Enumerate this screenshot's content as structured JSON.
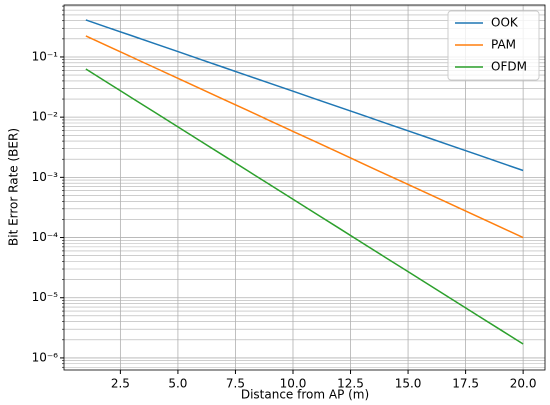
{
  "chart_data": {
    "type": "line",
    "xlabel": "Distance from AP (m)",
    "ylabel": "Bit Error Rate (BER)",
    "x": [
      1,
      2,
      3,
      4,
      5,
      6,
      7,
      8,
      9,
      10,
      11,
      12,
      13,
      14,
      15,
      16,
      17,
      18,
      19,
      20
    ],
    "series": [
      {
        "name": "OOK",
        "color": "#1f77b4",
        "values": [
          0.412,
          0.304,
          0.225,
          0.166,
          0.123,
          0.0906,
          0.0668,
          0.0494,
          0.0365,
          0.027,
          0.0199,
          0.0147,
          0.0109,
          0.00802,
          0.00593,
          0.00438,
          0.00323,
          0.00239,
          0.00176,
          0.0013
        ]
      },
      {
        "name": "PAM",
        "color": "#ff7f0e",
        "values": [
          0.224,
          0.149,
          0.0994,
          0.0662,
          0.0442,
          0.0294,
          0.0196,
          0.0131,
          0.00871,
          0.0058,
          0.00387,
          0.00258,
          0.00171,
          0.00114,
          0.000762,
          0.000507,
          0.000338,
          0.000225,
          0.00015,
          0.0001
        ]
      },
      {
        "name": "OFDM",
        "color": "#2ca02c",
        "values": [
          0.0631,
          0.0363,
          0.0208,
          0.012,
          0.00689,
          0.00396,
          0.00228,
          0.00131,
          0.000752,
          0.000432,
          0.000248,
          0.000143,
          8.2e-05,
          4.71e-05,
          2.71e-05,
          1.56e-05,
          8.95e-06,
          5.14e-06,
          2.96e-06,
          1.7e-06
        ]
      }
    ],
    "xlim": [
      0.05,
      20.95
    ],
    "xticks": [
      2.5,
      {
        "value": 5,
        "label": "5.0"
      },
      7.5,
      {
        "value": 10,
        "label": "10.0"
      },
      12.5,
      {
        "value": 15,
        "label": "15.0"
      },
      17.5,
      {
        "value": 20,
        "label": "20.0"
      }
    ],
    "ylim": [
      6.3e-07,
      0.73
    ],
    "ylog": true,
    "yticks": [
      {
        "value": 1e-06,
        "label": "10⁻⁶"
      },
      {
        "value": 1e-05,
        "label": "10⁻⁵"
      },
      {
        "value": 0.0001,
        "label": "10⁻⁴"
      },
      {
        "value": 0.001,
        "label": "10⁻³"
      },
      {
        "value": 0.01,
        "label": "10⁻²"
      },
      {
        "value": 0.1,
        "label": "10⁻¹"
      }
    ],
    "yticks_minor": [
      7e-07,
      8e-07,
      9e-07,
      2e-06,
      3e-06,
      4e-06,
      5e-06,
      6e-06,
      7e-06,
      8e-06,
      9e-06,
      2e-05,
      3e-05,
      4e-05,
      5e-05,
      6e-05,
      7e-05,
      8e-05,
      9e-05,
      0.0002,
      0.0003,
      0.0004,
      0.0005,
      0.0006,
      0.0007,
      0.0008,
      0.0009,
      0.002,
      0.003,
      0.004,
      0.005,
      0.006,
      0.007,
      0.008,
      0.009,
      0.02,
      0.03,
      0.04,
      0.05,
      0.06,
      0.07,
      0.08,
      0.09,
      0.2,
      0.3,
      0.4,
      0.5,
      0.6,
      0.7
    ],
    "grid": true,
    "legend": "upper right"
  }
}
